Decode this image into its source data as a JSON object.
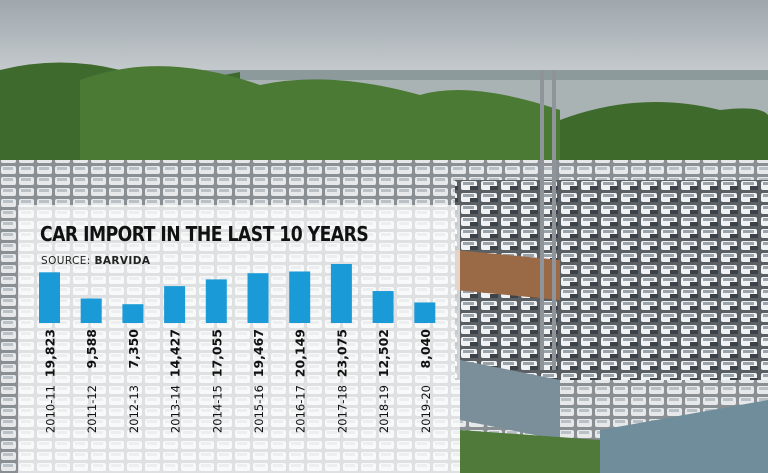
{
  "chart_data": {
    "type": "bar",
    "title": "CAR IMPORT IN THE LAST 10 YEARS",
    "source_label": "SOURCE:",
    "source_name": "BARVIDA",
    "categories": [
      "2010-11",
      "2011-12",
      "2012-13",
      "2013-14",
      "2014-15",
      "2015-16",
      "2016-17",
      "2017-18",
      "2018-19",
      "2019-20"
    ],
    "values": [
      19823,
      9588,
      7350,
      14427,
      17055,
      19467,
      20149,
      23075,
      12502,
      8040
    ],
    "value_labels": [
      "19,823",
      "9,588",
      "7,350",
      "14,427",
      "17,055",
      "19,467",
      "20,149",
      "23,075",
      "12,502",
      "8,040"
    ],
    "bar_color": "#1a9bd7",
    "xlabel": "",
    "ylabel": "",
    "grid": false
  }
}
